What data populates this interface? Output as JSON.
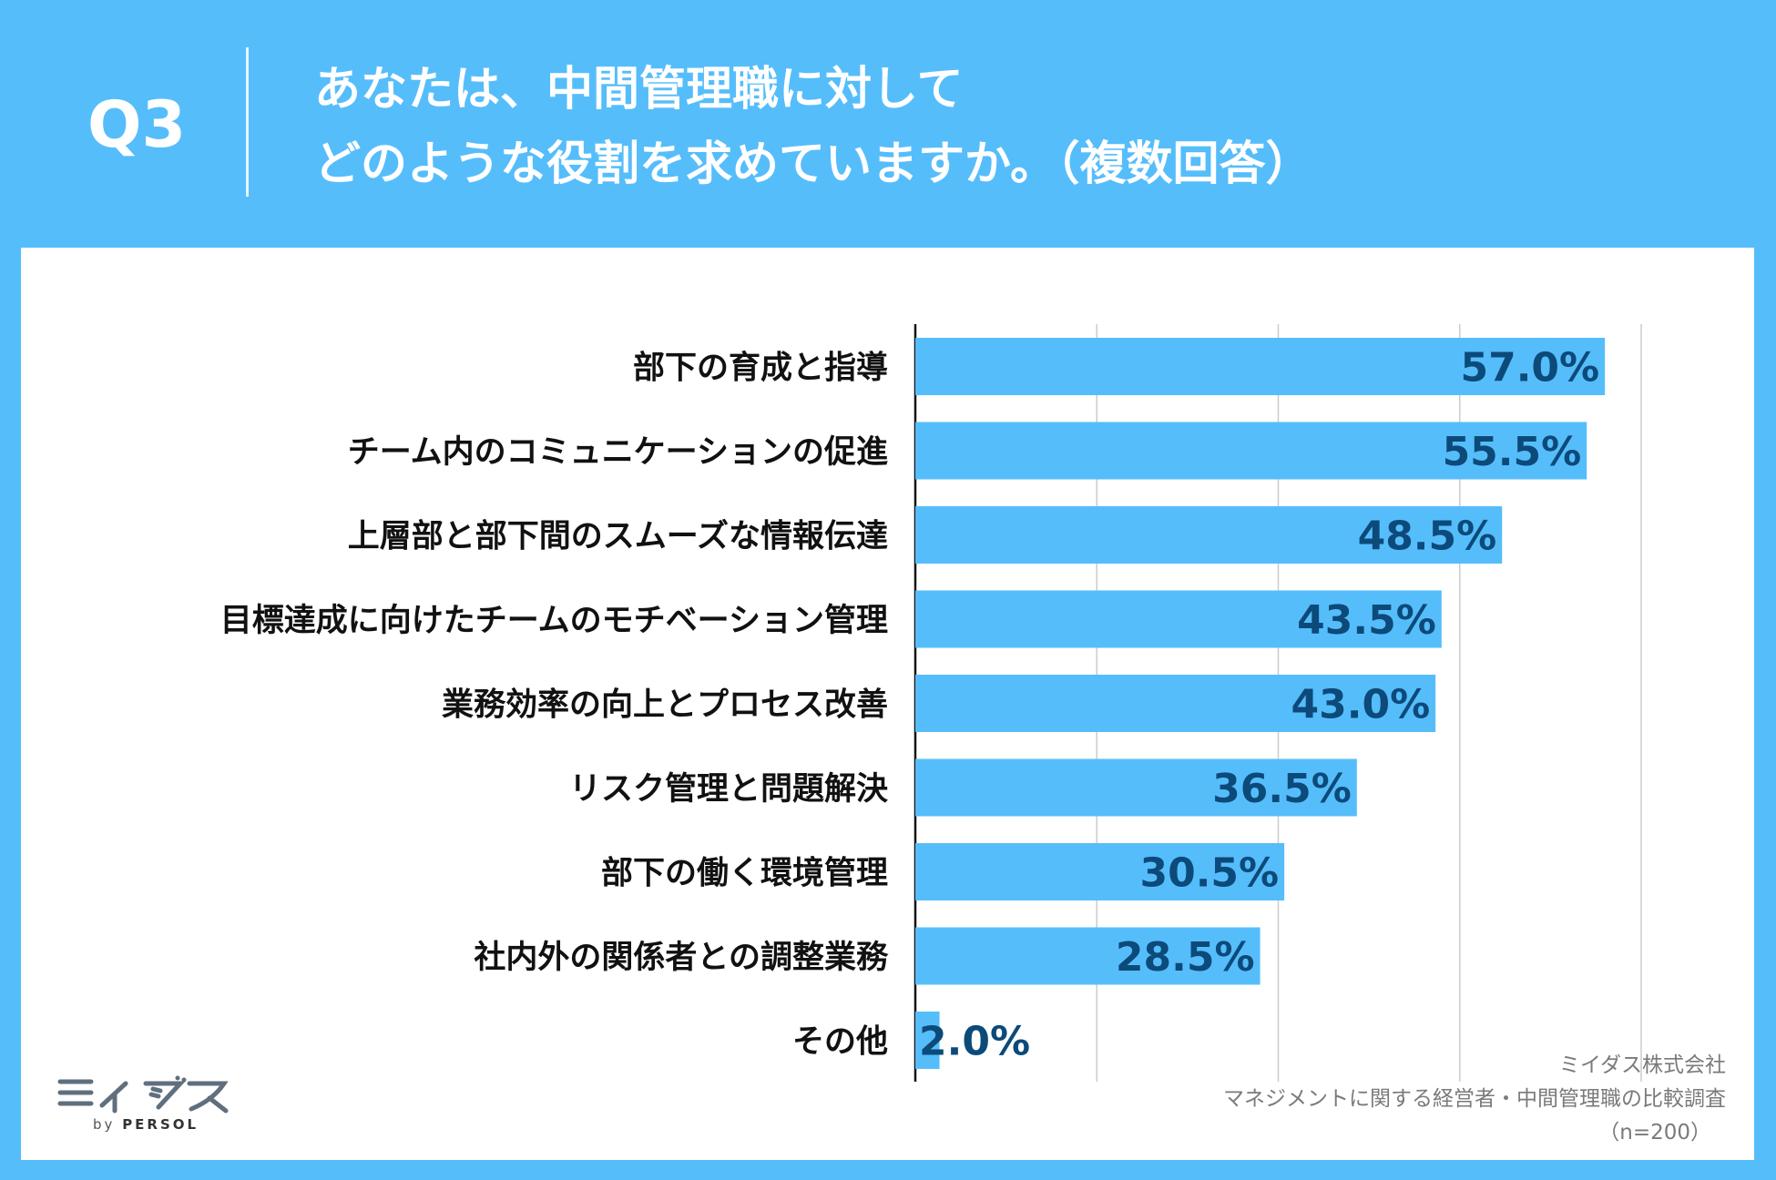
{
  "header": {
    "question_number": "Q3",
    "title_line1": "あなたは、中間管理職に対して",
    "title_line2": "どのような役割を求めていますか。（複数回答）"
  },
  "chart_data": {
    "type": "bar",
    "orientation": "horizontal",
    "categories": [
      "部下の育成と指導",
      "チーム内のコミュニケーションの促進",
      "上層部と部下間のスムーズな情報伝達",
      "目標達成に向けたチームのモチベーション管理",
      "業務効率の向上とプロセス改善",
      "リスク管理と問題解決",
      "部下の働く環境管理",
      "社内外の関係者との調整業務",
      "その他"
    ],
    "values": [
      57.0,
      55.5,
      48.5,
      43.5,
      43.0,
      36.5,
      30.5,
      28.5,
      2.0
    ],
    "value_labels": [
      "57.0%",
      "55.5%",
      "48.5%",
      "43.5%",
      "43.0%",
      "36.5%",
      "30.5%",
      "28.5%",
      "2.0%"
    ],
    "xlim": [
      0,
      60
    ],
    "gridlines": [
      15,
      30,
      45,
      60
    ],
    "grid": true,
    "legend": "none",
    "bar_color": "#56bdfb",
    "label_color": "#0c4a7a"
  },
  "source": {
    "company": "ミイダス株式会社",
    "survey": "マネジメントに関する経営者・中間管理職の比較調査",
    "sample": "（n=200）"
  },
  "logo": {
    "brand": "ミイダス",
    "by_text": "by",
    "parent": "PERSOL"
  }
}
